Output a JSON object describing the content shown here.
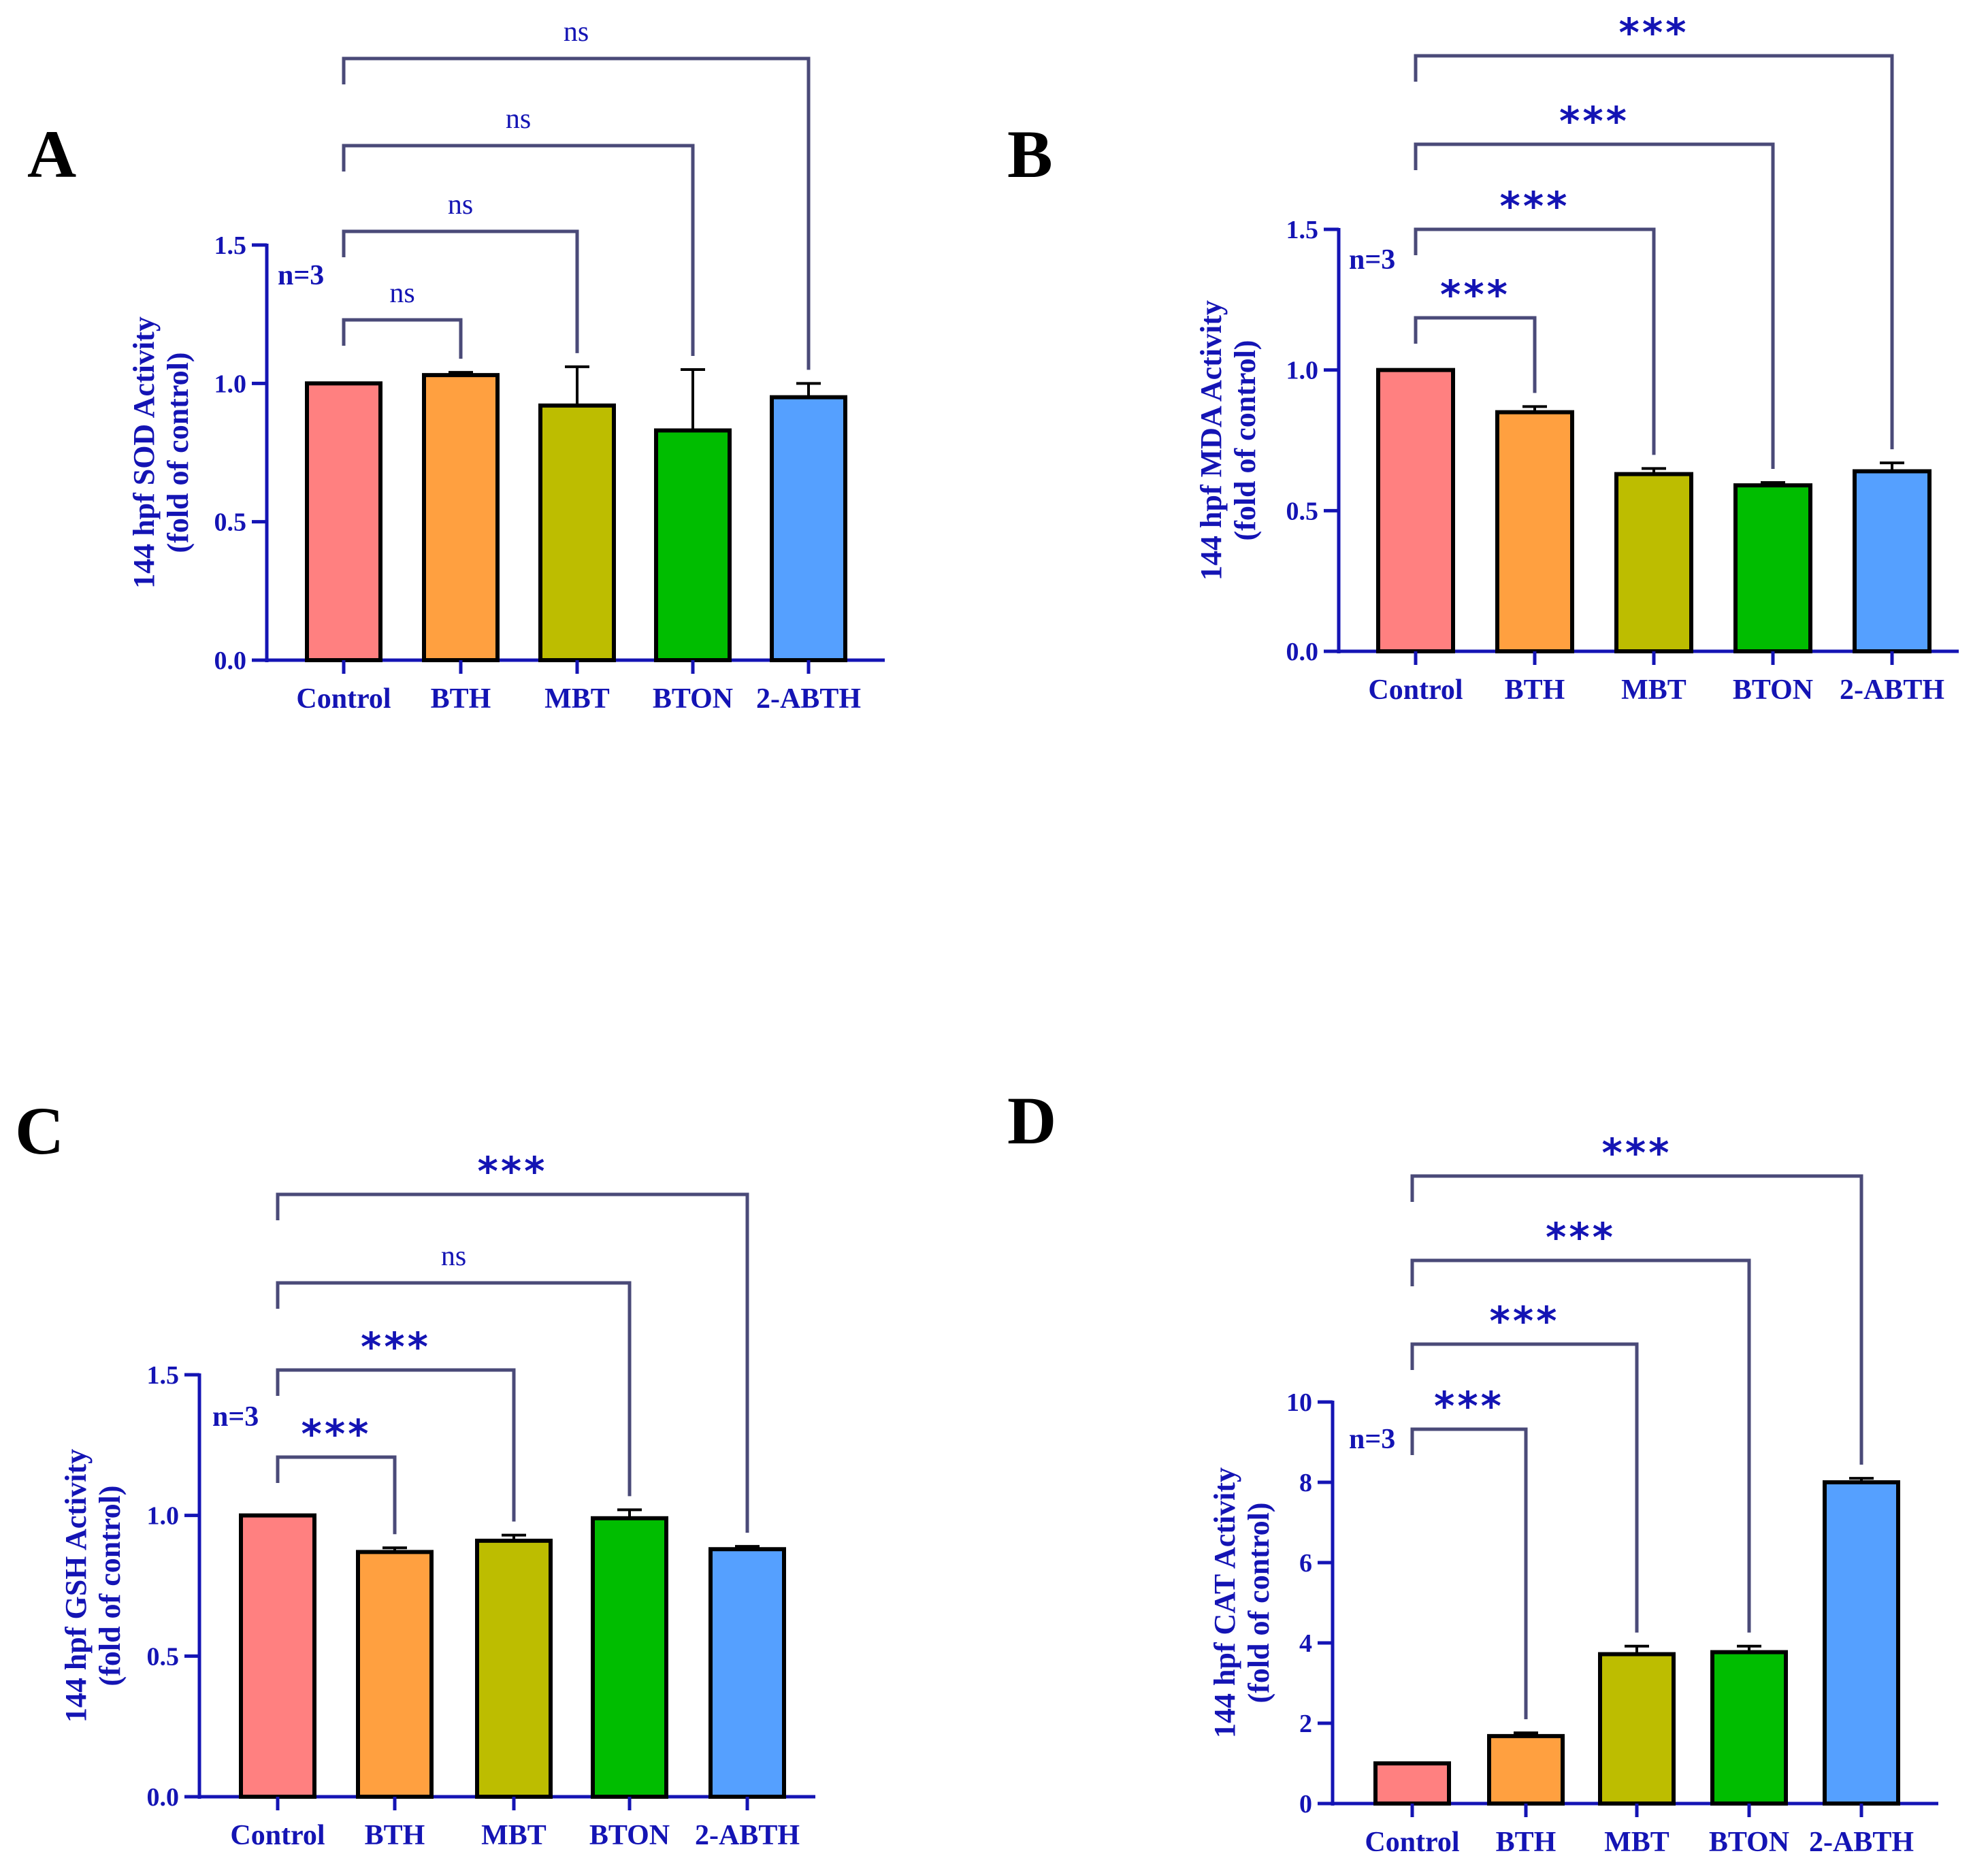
{
  "colors": {
    "axis": "#1414b4",
    "text": "#1414b4",
    "bracket": "#4a4a78",
    "bar_outline": "#000000",
    "bars": [
      "#ff8080",
      "#ffa040",
      "#bdbd00",
      "#00bd00",
      "#55a0ff"
    ]
  },
  "chart_data": [
    {
      "panel": "A",
      "type": "bar",
      "categories": [
        "Control",
        "BTH",
        "MBT",
        "BTON",
        "2-ABTH"
      ],
      "values": [
        1.0,
        1.03,
        0.92,
        0.83,
        0.95
      ],
      "errors": [
        0.0,
        0.01,
        0.14,
        0.22,
        0.05
      ],
      "ylabel": [
        "144 hpf SOD Activity",
        "(fold of control)"
      ],
      "ylim": [
        0,
        1.5
      ],
      "yticks": [
        "0.0",
        "0.5",
        "1.0",
        "1.5"
      ],
      "n_label": "n=3",
      "comparisons": [
        {
          "vs": "BTH",
          "label": "ns"
        },
        {
          "vs": "MBT",
          "label": "ns"
        },
        {
          "vs": "BTON",
          "label": "ns"
        },
        {
          "vs": "2-ABTH",
          "label": "ns"
        }
      ]
    },
    {
      "panel": "B",
      "type": "bar",
      "categories": [
        "Control",
        "BTH",
        "MBT",
        "BTON",
        "2-ABTH"
      ],
      "values": [
        1.0,
        0.85,
        0.63,
        0.59,
        0.64
      ],
      "errors": [
        0.0,
        0.02,
        0.02,
        0.01,
        0.03
      ],
      "ylabel": [
        "144 hpf MDA Activity",
        "(fold of control)"
      ],
      "ylim": [
        0,
        1.5
      ],
      "yticks": [
        "0.0",
        "0.5",
        "1.0",
        "1.5"
      ],
      "n_label": "n=3",
      "comparisons": [
        {
          "vs": "BTH",
          "label": "***"
        },
        {
          "vs": "MBT",
          "label": "***"
        },
        {
          "vs": "BTON",
          "label": "***"
        },
        {
          "vs": "2-ABTH",
          "label": "***"
        }
      ]
    },
    {
      "panel": "C",
      "type": "bar",
      "categories": [
        "Control",
        "BTH",
        "MBT",
        "BTON",
        "2-ABTH"
      ],
      "values": [
        1.0,
        0.87,
        0.91,
        0.99,
        0.88
      ],
      "errors": [
        0.0,
        0.015,
        0.02,
        0.03,
        0.01
      ],
      "ylabel": [
        "144 hpf GSH Activity",
        "(fold of control)"
      ],
      "ylim": [
        0,
        1.5
      ],
      "yticks": [
        "0.0",
        "0.5",
        "1.0",
        "1.5"
      ],
      "n_label": "n=3",
      "comparisons": [
        {
          "vs": "BTH",
          "label": "***"
        },
        {
          "vs": "MBT",
          "label": "***"
        },
        {
          "vs": "BTON",
          "label": "ns"
        },
        {
          "vs": "2-ABTH",
          "label": "***"
        }
      ]
    },
    {
      "panel": "D",
      "type": "bar",
      "categories": [
        "Control",
        "BTH",
        "MBT",
        "BTON",
        "2-ABTH"
      ],
      "values": [
        1.0,
        1.68,
        3.72,
        3.77,
        8.0
      ],
      "errors": [
        0.0,
        0.08,
        0.2,
        0.15,
        0.1
      ],
      "ylabel": [
        "144 hpf CAT Activity",
        "(fold of control)"
      ],
      "ylim": [
        0,
        10
      ],
      "yticks": [
        "0",
        "2",
        "4",
        "6",
        "8",
        "10"
      ],
      "n_label": "n=3",
      "comparisons": [
        {
          "vs": "BTH",
          "label": "***"
        },
        {
          "vs": "MBT",
          "label": "***"
        },
        {
          "vs": "BTON",
          "label": "***"
        },
        {
          "vs": "2-ABTH",
          "label": "***"
        }
      ]
    }
  ]
}
